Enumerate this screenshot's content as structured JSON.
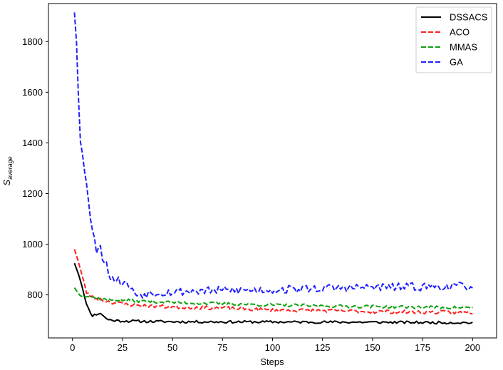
{
  "chart_data": {
    "type": "line",
    "xlabel": "Steps",
    "ylabel_main": "S",
    "ylabel_sub": "average",
    "xlim": [
      -12,
      212
    ],
    "ylim": [
      630,
      1950
    ],
    "xticks": [
      0,
      25,
      50,
      75,
      100,
      125,
      150,
      175,
      200
    ],
    "yticks": [
      800,
      1000,
      1200,
      1400,
      1600,
      1800
    ],
    "legend_position": "top-right",
    "series": [
      {
        "name": "DSSACS",
        "color": "#000000",
        "dash": "solid",
        "key_points": [
          [
            1,
            925
          ],
          [
            4,
            860
          ],
          [
            6,
            790
          ],
          [
            8,
            745
          ],
          [
            10,
            718
          ],
          [
            12,
            723
          ],
          [
            14,
            728
          ],
          [
            16,
            712
          ],
          [
            18,
            702
          ],
          [
            22,
            698
          ],
          [
            30,
            696
          ],
          [
            50,
            694
          ],
          [
            100,
            693
          ],
          [
            150,
            692
          ],
          [
            200,
            690
          ]
        ],
        "noise": 5,
        "seed": 11
      },
      {
        "name": "ACO",
        "color": "#ff2020",
        "dash": "dashed",
        "key_points": [
          [
            1,
            980
          ],
          [
            3,
            930
          ],
          [
            5,
            870
          ],
          [
            7,
            810
          ],
          [
            10,
            790
          ],
          [
            15,
            780
          ],
          [
            20,
            770
          ],
          [
            30,
            760
          ],
          [
            50,
            752
          ],
          [
            75,
            748
          ],
          [
            100,
            740
          ],
          [
            125,
            738
          ],
          [
            150,
            734
          ],
          [
            175,
            732
          ],
          [
            200,
            730
          ]
        ],
        "noise": 7,
        "seed": 23
      },
      {
        "name": "MMAS",
        "color": "#10a010",
        "dash": "dashed",
        "key_points": [
          [
            1,
            828
          ],
          [
            3,
            805
          ],
          [
            6,
            796
          ],
          [
            10,
            790
          ],
          [
            15,
            783
          ],
          [
            20,
            780
          ],
          [
            30,
            777
          ],
          [
            50,
            770
          ],
          [
            75,
            765
          ],
          [
            100,
            760
          ],
          [
            125,
            756
          ],
          [
            150,
            754
          ],
          [
            175,
            751
          ],
          [
            200,
            749
          ]
        ],
        "noise": 6,
        "seed": 37
      },
      {
        "name": "GA",
        "color": "#2020ff",
        "dash": "dashed",
        "key_points": [
          [
            1,
            1915
          ],
          [
            2,
            1800
          ],
          [
            3,
            1580
          ],
          [
            4,
            1400
          ],
          [
            5,
            1350
          ],
          [
            7,
            1250
          ],
          [
            8,
            1180
          ],
          [
            9,
            1100
          ],
          [
            10,
            1050
          ],
          [
            12,
            980
          ],
          [
            14,
            1000
          ],
          [
            15,
            950
          ],
          [
            17,
            920
          ],
          [
            19,
            870
          ],
          [
            22,
            860
          ],
          [
            25,
            850
          ],
          [
            28,
            840
          ],
          [
            30,
            815
          ],
          [
            33,
            800
          ],
          [
            40,
            808
          ],
          [
            50,
            812
          ],
          [
            75,
            818
          ],
          [
            100,
            820
          ],
          [
            125,
            826
          ],
          [
            150,
            830
          ],
          [
            175,
            832
          ],
          [
            200,
            835
          ]
        ],
        "noise": 16,
        "seed": 53
      }
    ]
  }
}
